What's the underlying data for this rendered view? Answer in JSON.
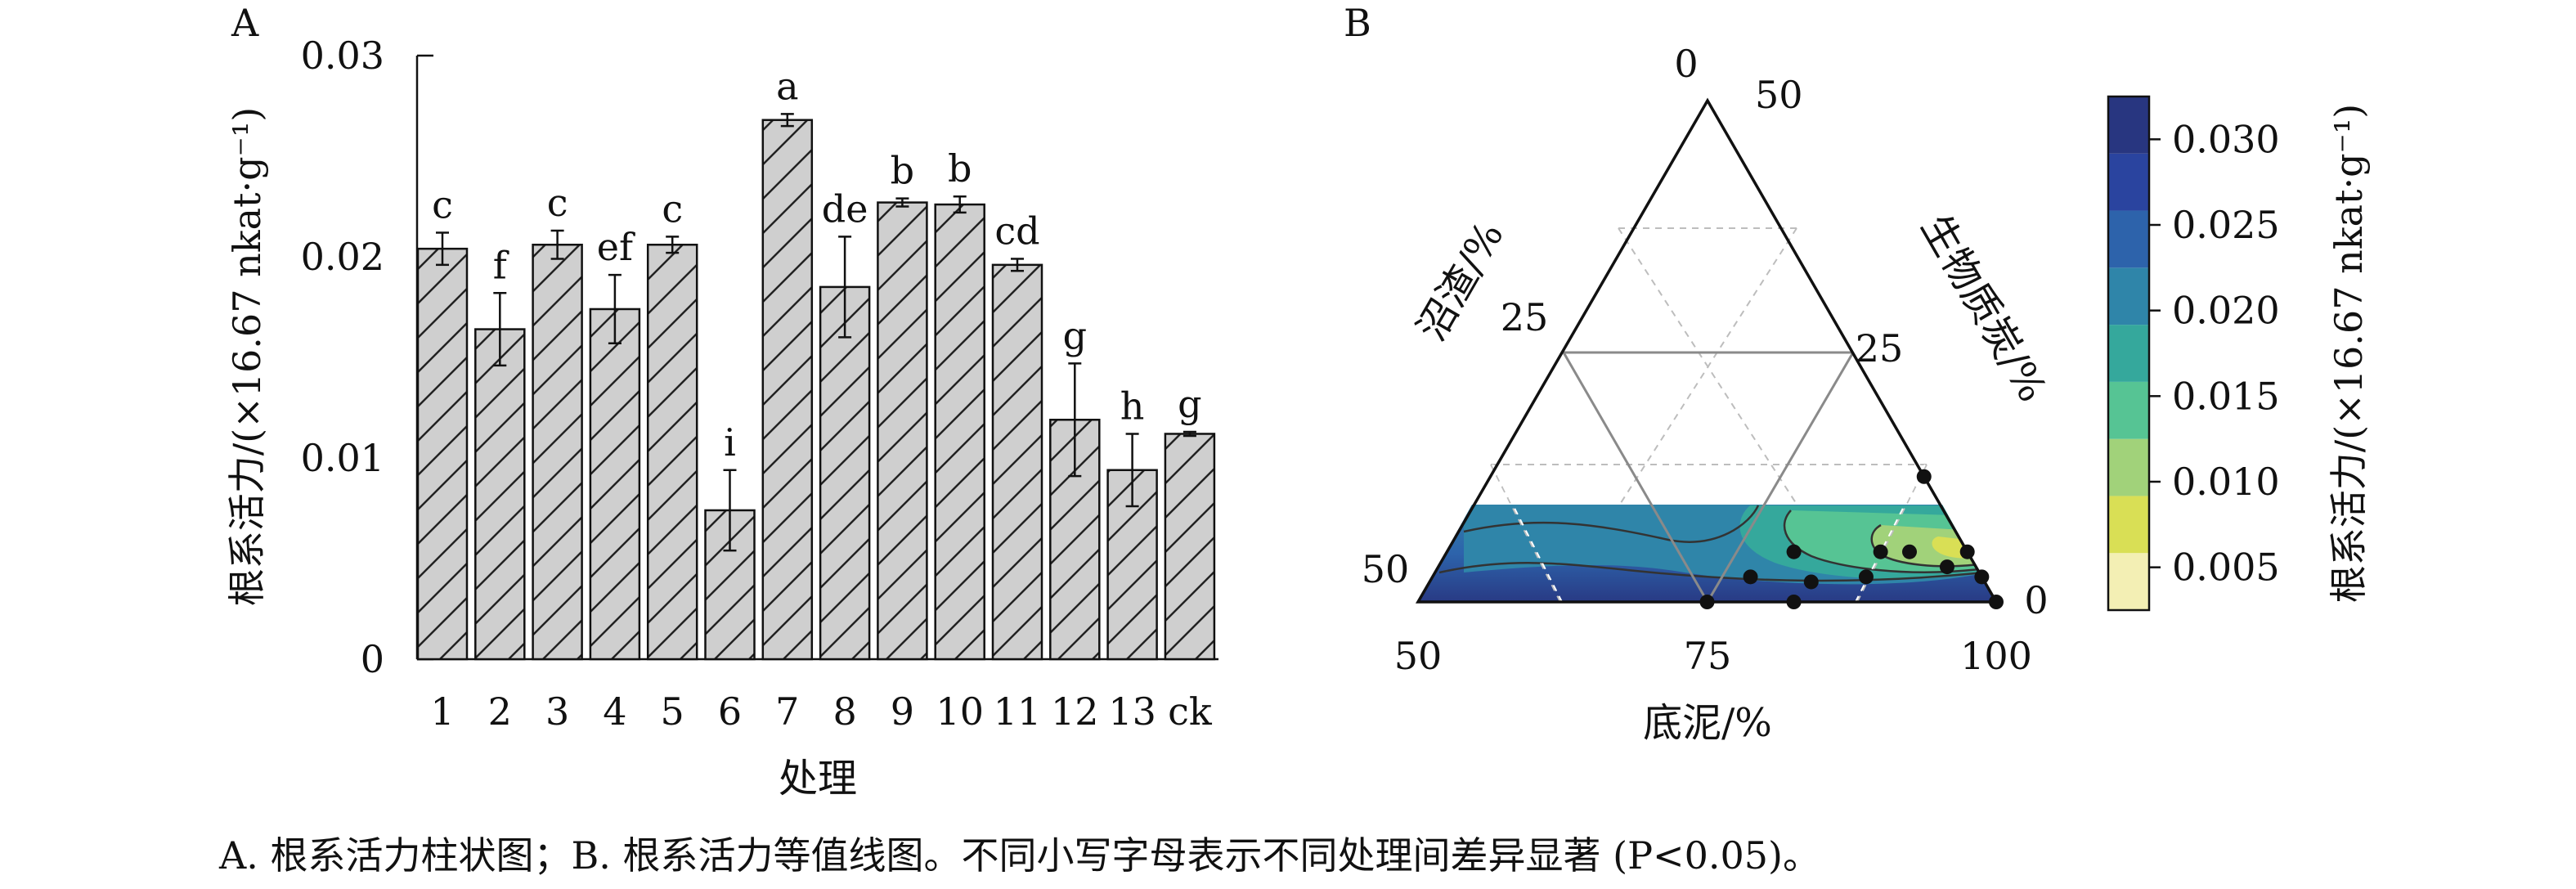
{
  "caption": "A. 根系活力柱状图；B. 根系活力等值线图。不同小写字母表示不同处理间差异显著 (P<0.05)。",
  "chart_data": [
    {
      "panel_label": "A",
      "type": "bar",
      "xlabel": "处理",
      "ylabel": "根系活力/(×16.67 nkat·g⁻¹)",
      "ylim": [
        0,
        0.03
      ],
      "y_ticks": [
        "0",
        "0.01",
        "0.02",
        "0.03"
      ],
      "y_tick_values": [
        0,
        0.01,
        0.02,
        0.03
      ],
      "categories": [
        "1",
        "2",
        "3",
        "4",
        "5",
        "6",
        "7",
        "8",
        "9",
        "10",
        "11",
        "12",
        "13",
        "ck"
      ],
      "values": [
        0.0204,
        0.0164,
        0.0206,
        0.0174,
        0.0206,
        0.0074,
        0.0268,
        0.0185,
        0.0227,
        0.0226,
        0.0196,
        0.0119,
        0.0094,
        0.0112
      ],
      "errors": [
        0.0008,
        0.0018,
        0.0007,
        0.0017,
        0.0004,
        0.002,
        0.0003,
        0.0025,
        0.0002,
        0.0004,
        0.0003,
        0.0028,
        0.0018,
        0.0001
      ],
      "significance_letters": [
        "c",
        "f",
        "c",
        "ef",
        "c",
        "i",
        "a",
        "de",
        "b",
        "b",
        "cd",
        "g",
        "h",
        "g"
      ],
      "bar_color": "#cfcfcf",
      "bar_pattern": "diagonal-hatch"
    },
    {
      "panel_label": "B",
      "type": "ternary-contour",
      "axes": {
        "bottom": {
          "label": "底泥/%",
          "ticks": [
            "50",
            "75",
            "100"
          ]
        },
        "left": {
          "label": "沼渣/%",
          "ticks": [
            "50",
            "25",
            "0"
          ]
        },
        "right": {
          "label": "生物质炭/%",
          "ticks": [
            "50",
            "25",
            "0"
          ]
        }
      },
      "colorbar": {
        "label": "根系活力/(×16.67 nkat·g⁻¹)",
        "ticks": [
          "0.005",
          "0.010",
          "0.015",
          "0.020",
          "0.025",
          "0.030"
        ],
        "tick_values": [
          0.005,
          0.01,
          0.015,
          0.02,
          0.025,
          0.03
        ],
        "colors": [
          "#f3efb4",
          "#d9df55",
          "#a1d27a",
          "#56c494",
          "#35a89c",
          "#2f85a9",
          "#2d63ab",
          "#2a449f",
          "#283680"
        ]
      },
      "design_points": [
        {
          "底泥": 50,
          "沼渣": 50,
          "生物质炭": 0
        },
        {
          "底泥": 55,
          "沼渣": 40,
          "生物质炭": 5
        },
        {
          "底泥": 60,
          "沼渣": 30,
          "生物质炭": 10
        },
        {
          "底泥": 65,
          "沼渣": 35,
          "生物质炭": 0
        },
        {
          "底泥": 66,
          "沼渣": 30,
          "生物质炭": 4
        },
        {
          "底泥": 75,
          "沼渣": 20,
          "生物质炭": 5
        },
        {
          "底泥": 75,
          "沼渣": 15,
          "生物质炭": 10
        },
        {
          "底泥": 80,
          "沼渣": 10,
          "生物质炭": 10
        },
        {
          "底泥": 88,
          "沼渣": 5,
          "生物质炭": 7
        },
        {
          "底泥": 100,
          "沼渣": 0,
          "生物质炭": 0
        },
        {
          "底泥": 95,
          "沼渣": 0,
          "生物质炭": 5
        },
        {
          "底泥": 90,
          "沼渣": 0,
          "生物质炭": 10
        },
        {
          "底泥": 75,
          "沼渣": 0,
          "生物质炭": 25
        }
      ]
    }
  ]
}
